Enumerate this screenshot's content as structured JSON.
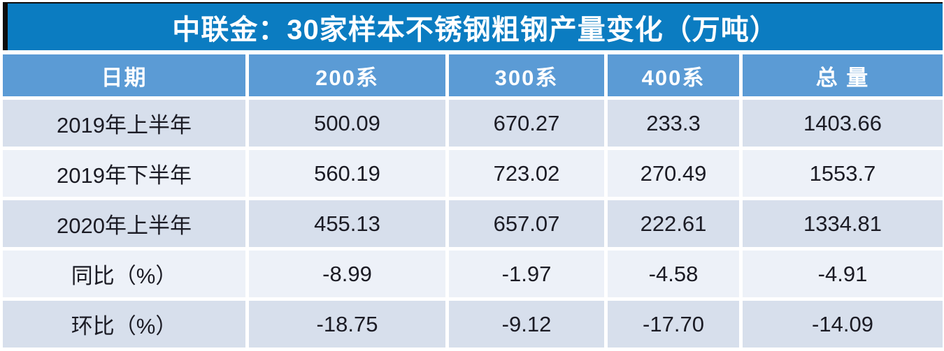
{
  "title": "中联金：30家样本不锈钢粗钢产量变化（万吨）",
  "table": {
    "columns": [
      "日期",
      "200系",
      "300系",
      "400系",
      "总 量"
    ],
    "rows": [
      {
        "label": "2019年上半年",
        "values": [
          "500.09",
          "670.27",
          "233.3",
          "1403.66"
        ]
      },
      {
        "label": "2019年下半年",
        "values": [
          "560.19",
          "723.02",
          "270.49",
          "1553.7"
        ]
      },
      {
        "label": "2020年上半年",
        "values": [
          "455.13",
          "657.07",
          "222.61",
          "1334.81"
        ]
      },
      {
        "label": "同比（%）",
        "values": [
          "-8.99",
          "-1.97",
          "-4.58",
          "-4.91"
        ]
      },
      {
        "label": "环比（%）",
        "values": [
          "-18.75",
          "-9.12",
          "-17.70",
          "-14.09"
        ]
      }
    ]
  },
  "colors": {
    "title_bg": "#0b7cc1",
    "header_bg": "#5b9bd5",
    "row_dark": "#d7dfec",
    "row_light": "#edf1f8",
    "title_text": "#ffffff",
    "body_text": "#1b1b24"
  },
  "chart_data": {
    "type": "table",
    "title": "中联金：30家样本不锈钢粗钢产量变化（万吨）",
    "unit": "万吨",
    "columns": [
      "日期",
      "200系",
      "300系",
      "400系",
      "总量"
    ],
    "rows": [
      [
        "2019年上半年",
        500.09,
        670.27,
        233.3,
        1403.66
      ],
      [
        "2019年下半年",
        560.19,
        723.02,
        270.49,
        1553.7
      ],
      [
        "2020年上半年",
        455.13,
        657.07,
        222.61,
        1334.81
      ],
      [
        "同比（%）",
        -8.99,
        -1.97,
        -4.58,
        -4.91
      ],
      [
        "环比（%）",
        -18.75,
        -9.12,
        -17.7,
        -14.09
      ]
    ]
  }
}
